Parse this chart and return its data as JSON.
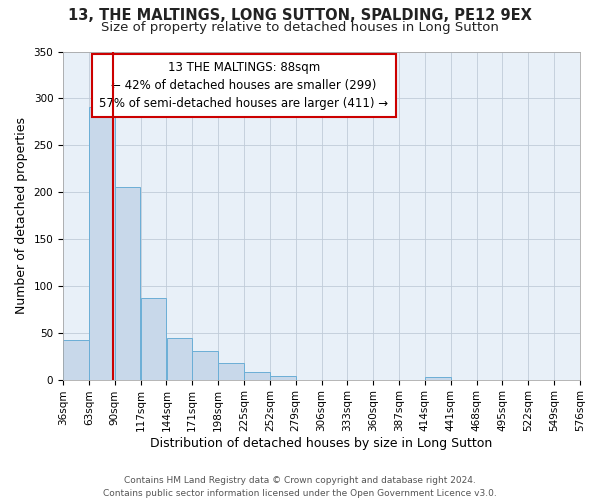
{
  "title1": "13, THE MALTINGS, LONG SUTTON, SPALDING, PE12 9EX",
  "title2": "Size of property relative to detached houses in Long Sutton",
  "xlabel": "Distribution of detached houses by size in Long Sutton",
  "ylabel": "Number of detached properties",
  "footer1": "Contains HM Land Registry data © Crown copyright and database right 2024.",
  "footer2": "Contains public sector information licensed under the Open Government Licence v3.0.",
  "bin_edges": [
    36,
    63,
    90,
    117,
    144,
    171,
    198,
    225,
    252,
    279,
    306,
    333,
    360,
    387,
    414,
    441,
    468,
    495,
    522,
    549,
    576
  ],
  "bin_heights": [
    42,
    291,
    205,
    87,
    44,
    30,
    18,
    8,
    4,
    0,
    0,
    0,
    0,
    0,
    3,
    0,
    0,
    0,
    0,
    0
  ],
  "bar_color": "#c8d8ea",
  "bar_edge_color": "#6baed6",
  "property_size": 88,
  "vline_color": "#cc0000",
  "annotation_line1": "13 THE MALTINGS: 88sqm",
  "annotation_line2": "← 42% of detached houses are smaller (299)",
  "annotation_line3": "57% of semi-detached houses are larger (411) →",
  "annotation_box_edge_color": "#cc0000",
  "annotation_box_face_color": "#ffffff",
  "ylim": [
    0,
    350
  ],
  "yticks": [
    0,
    50,
    100,
    150,
    200,
    250,
    300,
    350
  ],
  "plot_bg_color": "#e8f0f8",
  "background_color": "#ffffff",
  "grid_color": "#c0ccd8",
  "title_fontsize": 10.5,
  "subtitle_fontsize": 9.5,
  "axis_label_fontsize": 9,
  "tick_fontsize": 7.5,
  "annotation_fontsize": 8.5,
  "footer_fontsize": 6.5
}
